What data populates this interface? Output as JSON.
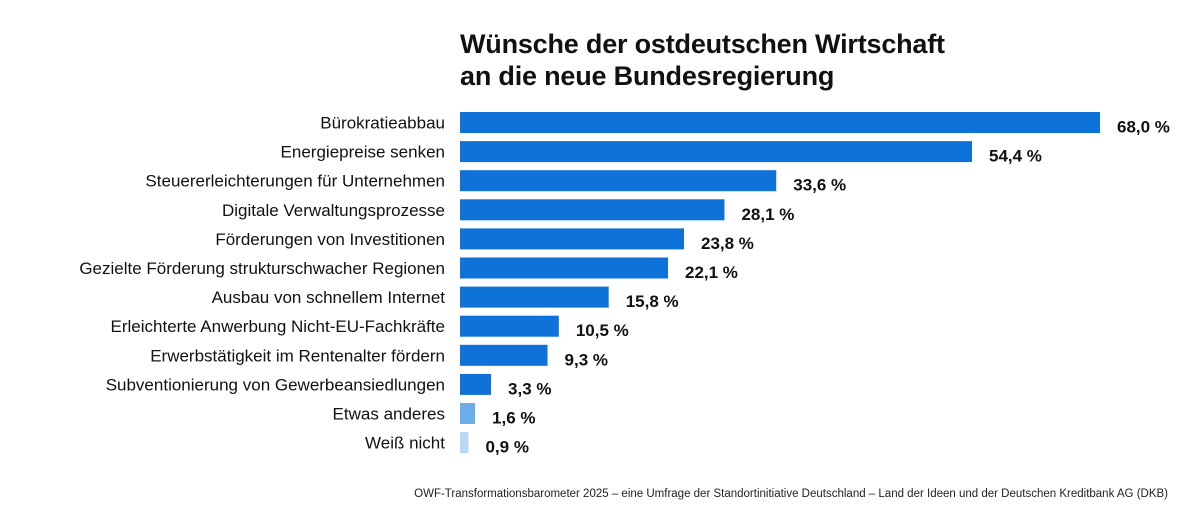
{
  "colors": {
    "primary_bar": "#0e72d9",
    "other_bar": "#6aaee9",
    "dont_know_bar": "#b8d8f5",
    "text": "#111111"
  },
  "header": {
    "title_line1": "Wünsche der ostdeutschen Wirtschaft",
    "title_line2": "an die neue Bundesregierung"
  },
  "footer": {
    "source": "OWF-Transformationsbarometer 2025 – eine Umfrage der Standortinitiative Deutschland – Land der Ideen und der Deutschen Kreditbank AG (DKB)"
  },
  "chart_data": {
    "type": "bar",
    "orientation": "horizontal",
    "title": "Wünsche der ostdeutschen Wirtschaft an die neue Bundesregierung",
    "xlim": [
      0,
      68
    ],
    "grid": false,
    "categories": [
      "Bürokratieabbau",
      "Energiepreise senken",
      "Steuererleichterungen für Unternehmen",
      "Digitale Verwaltungsprozesse",
      "Förderungen von Investitionen",
      "Gezielte Förderung strukturschwacher Regionen",
      "Ausbau von schnellem Internet",
      "Erleichterte Anwerbung Nicht-EU-Fachkräfte",
      "Erwerbstätigkeit im Rentenalter fördern",
      "Subventionierung von Gewerbeansiedlungen",
      "Etwas anderes",
      "Weiß nicht"
    ],
    "values": [
      68.0,
      54.4,
      33.6,
      28.1,
      23.8,
      22.1,
      15.8,
      10.5,
      9.3,
      3.3,
      1.6,
      0.9
    ],
    "value_labels": [
      "68,0 %",
      "54,4 %",
      "33,6 %",
      "28,1 %",
      "23,8 %",
      "22,1 %",
      "15,8 %",
      "10,5 %",
      "9,3 %",
      "3,3 %",
      "1,6 %",
      "0,9 %"
    ],
    "bar_colors": [
      "#0e72d9",
      "#0e72d9",
      "#0e72d9",
      "#0e72d9",
      "#0e72d9",
      "#0e72d9",
      "#0e72d9",
      "#0e72d9",
      "#0e72d9",
      "#0e72d9",
      "#6aaee9",
      "#b8d8f5"
    ]
  }
}
